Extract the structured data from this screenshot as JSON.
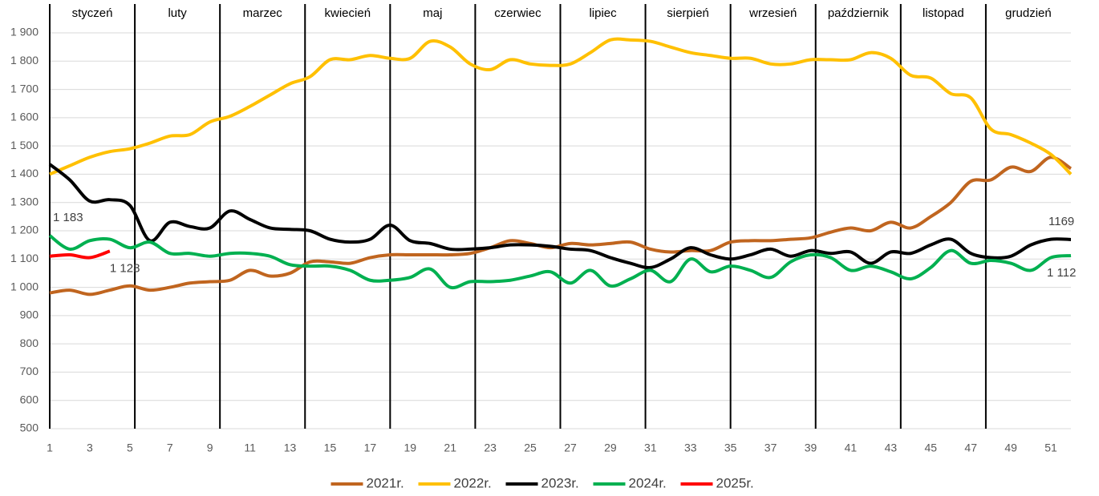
{
  "chart_data": {
    "type": "line",
    "months": [
      "styczeń",
      "luty",
      "marzec",
      "kwiecień",
      "maj",
      "czerwiec",
      "lipiec",
      "sierpień",
      "wrzesień",
      "październik",
      "listopad",
      "grudzień"
    ],
    "x": [
      1,
      2,
      3,
      4,
      5,
      6,
      7,
      8,
      9,
      10,
      11,
      12,
      13,
      14,
      15,
      16,
      17,
      18,
      19,
      20,
      21,
      22,
      23,
      24,
      25,
      26,
      27,
      28,
      29,
      30,
      31,
      32,
      33,
      34,
      35,
      36,
      37,
      38,
      39,
      40,
      41,
      42,
      43,
      44,
      45,
      46,
      47,
      48,
      49,
      50,
      51,
      52
    ],
    "xlim": [
      1,
      52
    ],
    "xticks": [
      1,
      3,
      5,
      7,
      9,
      11,
      13,
      15,
      17,
      19,
      21,
      23,
      25,
      27,
      29,
      31,
      33,
      35,
      37,
      39,
      41,
      43,
      45,
      47,
      49,
      51
    ],
    "ylim": [
      500,
      1900
    ],
    "yticks": [
      500,
      600,
      700,
      800,
      900,
      {
        "value": 1000,
        "label": "1 000"
      },
      {
        "value": 1100,
        "label": "1 100"
      },
      {
        "value": 1200,
        "label": "1 200"
      },
      {
        "value": 1300,
        "label": "1 300"
      },
      {
        "value": 1400,
        "label": "1 400"
      },
      {
        "value": 1500,
        "label": "1 500"
      },
      {
        "value": 1600,
        "label": "1 600"
      },
      {
        "value": 1700,
        "label": "1 700"
      },
      {
        "value": 1800,
        "label": "1 800"
      },
      {
        "value": 1900,
        "label": "1 900"
      }
    ],
    "grid": true,
    "legend": "bottom",
    "series": [
      {
        "name": "2021r.",
        "color": "#c0651f",
        "values": [
          980,
          990,
          975,
          990,
          1005,
          990,
          1000,
          1015,
          1020,
          1025,
          1060,
          1040,
          1050,
          1090,
          1090,
          1085,
          1105,
          1115,
          1115,
          1115,
          1115,
          1120,
          1140,
          1165,
          1155,
          1140,
          1155,
          1150,
          1155,
          1160,
          1135,
          1125,
          1130,
          1130,
          1160,
          1165,
          1165,
          1170,
          1175,
          1195,
          1210,
          1200,
          1230,
          1210,
          1250,
          1300,
          1375,
          1380,
          1425,
          1410,
          1460,
          1420
        ]
      },
      {
        "name": "2022r.",
        "color": "#ffc000",
        "values": [
          1400,
          1430,
          1460,
          1480,
          1490,
          1510,
          1535,
          1540,
          1585,
          1605,
          1640,
          1680,
          1720,
          1745,
          1805,
          1805,
          1820,
          1810,
          1810,
          1870,
          1850,
          1790,
          1770,
          1805,
          1790,
          1785,
          1790,
          1830,
          1875,
          1875,
          1870,
          1850,
          1830,
          1820,
          1810,
          1810,
          1790,
          1790,
          1805,
          1805,
          1805,
          1830,
          1810,
          1750,
          1740,
          1685,
          1670,
          1560,
          1540,
          1510,
          1470,
          1400
        ]
      },
      {
        "name": "2023r.",
        "color": "#000000",
        "values": [
          1435,
          1380,
          1305,
          1310,
          1290,
          1165,
          1230,
          1215,
          1210,
          1270,
          1240,
          1210,
          1205,
          1200,
          1170,
          1160,
          1170,
          1220,
          1165,
          1155,
          1135,
          1135,
          1140,
          1150,
          1150,
          1145,
          1135,
          1130,
          1105,
          1085,
          1070,
          1100,
          1140,
          1115,
          1100,
          1115,
          1135,
          1110,
          1130,
          1120,
          1125,
          1085,
          1125,
          1120,
          1150,
          1170,
          1120,
          1105,
          1110,
          1150,
          1170,
          1169
        ],
        "value_labels": [
          null,
          null,
          null,
          null,
          null,
          null,
          null,
          null,
          null,
          null,
          null,
          null,
          null,
          null,
          null,
          null,
          null,
          null,
          null,
          null,
          null,
          null,
          null,
          null,
          null,
          null,
          null,
          null,
          null,
          null,
          null,
          null,
          null,
          null,
          null,
          null,
          null,
          null,
          null,
          null,
          null,
          null,
          null,
          null,
          null,
          null,
          null,
          null,
          null,
          null,
          null,
          "1169"
        ]
      },
      {
        "name": "2024r.",
        "color": "#00b050",
        "values": [
          1183,
          1135,
          1165,
          1170,
          1140,
          1160,
          1120,
          1120,
          1110,
          1120,
          1120,
          1110,
          1080,
          1075,
          1075,
          1060,
          1025,
          1025,
          1035,
          1065,
          1000,
          1020,
          1020,
          1025,
          1040,
          1055,
          1015,
          1060,
          1005,
          1030,
          1060,
          1020,
          1100,
          1055,
          1075,
          1060,
          1035,
          1090,
          1115,
          1105,
          1060,
          1075,
          1055,
          1030,
          1070,
          1130,
          1085,
          1095,
          1085,
          1060,
          1105,
          1112
        ],
        "value_labels": [
          "1 183",
          null,
          null,
          null,
          null,
          null,
          null,
          null,
          null,
          null,
          null,
          null,
          null,
          null,
          null,
          null,
          null,
          null,
          null,
          null,
          null,
          null,
          null,
          null,
          null,
          null,
          null,
          null,
          null,
          null,
          null,
          null,
          null,
          null,
          null,
          null,
          null,
          null,
          null,
          null,
          null,
          null,
          null,
          null,
          null,
          null,
          null,
          null,
          null,
          null,
          null,
          "1 112"
        ]
      },
      {
        "name": "2025r.",
        "color": "#ff0000",
        "values": [
          1110,
          1115,
          1105,
          1128,
          null,
          null,
          null,
          null,
          null,
          null,
          null,
          null,
          null,
          null,
          null,
          null,
          null,
          null,
          null,
          null,
          null,
          null,
          null,
          null,
          null,
          null,
          null,
          null,
          null,
          null,
          null,
          null,
          null,
          null,
          null,
          null,
          null,
          null,
          null,
          null,
          null,
          null,
          null,
          null,
          null,
          null,
          null,
          null,
          null,
          null,
          null,
          null
        ],
        "value_labels": [
          null,
          null,
          null,
          "1 128",
          null,
          null,
          null,
          null,
          null,
          null,
          null,
          null,
          null,
          null,
          null,
          null,
          null,
          null,
          null,
          null,
          null,
          null,
          null,
          null,
          null,
          null,
          null,
          null,
          null,
          null,
          null,
          null,
          null,
          null,
          null,
          null,
          null,
          null,
          null,
          null,
          null,
          null,
          null,
          null,
          null,
          null,
          null,
          null,
          null,
          null,
          null,
          null
        ]
      }
    ]
  }
}
